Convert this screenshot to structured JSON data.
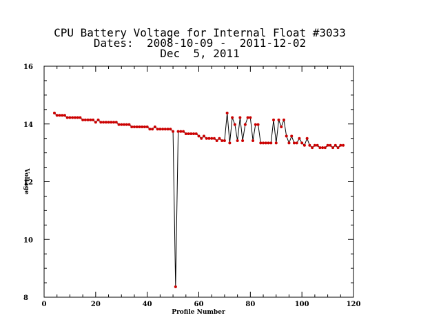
{
  "chart_data": {
    "type": "line",
    "title_lines": [
      "CPU Battery Voltage for Internal Float #3033",
      "Dates:  2008-10-09 -  2011-12-02",
      "Dec  5, 2011"
    ],
    "xlabel": "Profile Number",
    "ylabel": "Voltage",
    "xlim": [
      0,
      120
    ],
    "ylim": [
      8,
      16
    ],
    "xticks": [
      0,
      20,
      40,
      60,
      80,
      100,
      120
    ],
    "yticks": [
      8,
      10,
      12,
      14,
      16
    ],
    "grid": false,
    "line_color": "#000000",
    "marker_color": "#cc0000",
    "series": [
      {
        "x": [
          4,
          5,
          6,
          7,
          8,
          9,
          10,
          11,
          12,
          13,
          14,
          15,
          16,
          17,
          18,
          19,
          20,
          21,
          22,
          23,
          24,
          25,
          26,
          27,
          28,
          29,
          30,
          31,
          32,
          33,
          34,
          35,
          36,
          37,
          38,
          39,
          40,
          41,
          42,
          43,
          44,
          45,
          46,
          47,
          48,
          49,
          50,
          51,
          52,
          53,
          54,
          55,
          56,
          57,
          58,
          59,
          60,
          61,
          62,
          63,
          64,
          65,
          66,
          67,
          68,
          69,
          70,
          71,
          72,
          73,
          74,
          75,
          76,
          77,
          78,
          79,
          80,
          81,
          82,
          83,
          84,
          85,
          86,
          87,
          88,
          89,
          90,
          91,
          92,
          93,
          94,
          95,
          96,
          97,
          98,
          99,
          100,
          101,
          102,
          103,
          104,
          105,
          106,
          107,
          108,
          109,
          110,
          111,
          112,
          113,
          114,
          115,
          116
        ],
        "y": [
          14.38,
          14.3,
          14.3,
          14.3,
          14.3,
          14.22,
          14.22,
          14.22,
          14.22,
          14.22,
          14.22,
          14.14,
          14.14,
          14.14,
          14.14,
          14.14,
          14.06,
          14.14,
          14.06,
          14.06,
          14.06,
          14.06,
          14.06,
          14.06,
          14.06,
          13.98,
          13.98,
          13.98,
          13.98,
          13.98,
          13.9,
          13.9,
          13.9,
          13.9,
          13.9,
          13.9,
          13.9,
          13.82,
          13.82,
          13.9,
          13.82,
          13.82,
          13.82,
          13.82,
          13.82,
          13.82,
          13.74,
          8.36,
          13.74,
          13.74,
          13.74,
          13.66,
          13.66,
          13.66,
          13.66,
          13.66,
          13.58,
          13.5,
          13.58,
          13.5,
          13.5,
          13.5,
          13.5,
          13.42,
          13.5,
          13.42,
          13.42,
          14.38,
          13.34,
          14.22,
          13.98,
          13.42,
          14.22,
          13.42,
          13.98,
          14.22,
          14.22,
          13.42,
          13.98,
          13.98,
          13.34,
          13.34,
          13.34,
          13.34,
          13.34,
          14.14,
          13.34,
          14.14,
          13.9,
          14.14,
          13.58,
          13.34,
          13.58,
          13.34,
          13.34,
          13.5,
          13.34,
          13.26,
          13.5,
          13.26,
          13.18,
          13.26,
          13.26,
          13.18,
          13.18,
          13.18,
          13.26,
          13.26,
          13.18,
          13.26,
          13.18,
          13.26,
          13.26
        ]
      }
    ]
  }
}
